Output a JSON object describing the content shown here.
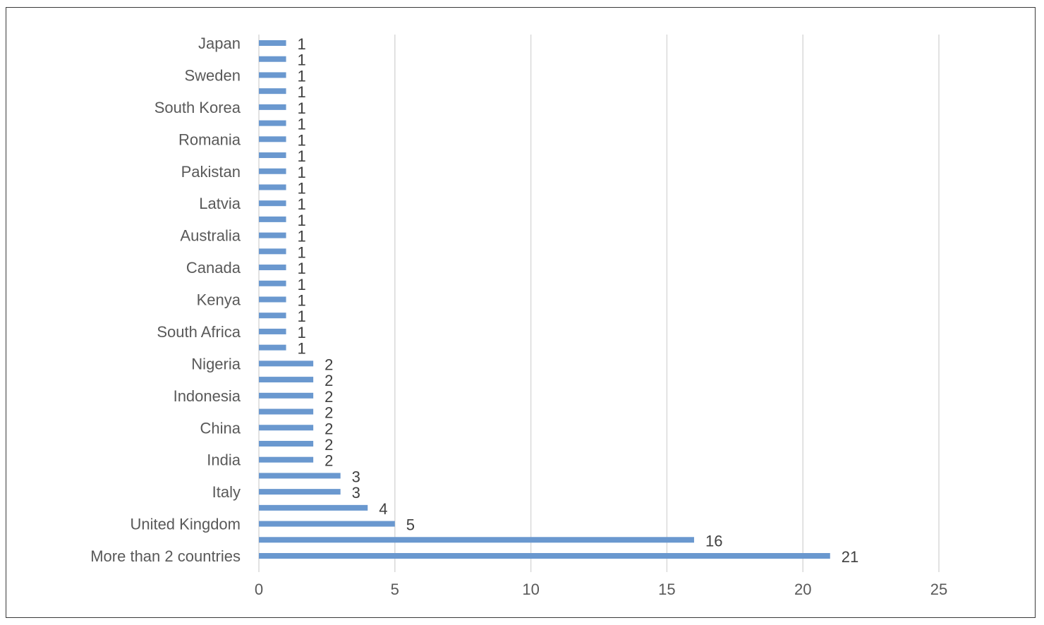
{
  "chart_data": {
    "type": "bar",
    "orientation": "horizontal",
    "title": "",
    "xlabel": "",
    "ylabel": "",
    "xlim": [
      0,
      25
    ],
    "xticks": [
      0,
      5,
      10,
      15,
      20,
      25
    ],
    "grid": true,
    "legend": "none",
    "bar_color": "#6a98cf",
    "categories_top_to_bottom": [
      "Japan",
      "",
      "Sweden",
      "",
      "South Korea",
      "",
      "Romania",
      "",
      "Pakistan",
      "",
      "Latvia",
      "",
      "Australia",
      "",
      "Canada",
      "",
      "Kenya",
      "",
      "South Africa",
      "",
      "Nigeria",
      "",
      "Indonesia",
      "",
      "China",
      "",
      "India",
      "",
      "Italy",
      "",
      "United Kingdom",
      "",
      "More than 2 countries"
    ],
    "values_top_to_bottom": [
      1,
      1,
      1,
      1,
      1,
      1,
      1,
      1,
      1,
      1,
      1,
      1,
      1,
      1,
      1,
      1,
      1,
      1,
      1,
      1,
      2,
      2,
      2,
      2,
      2,
      2,
      2,
      3,
      3,
      4,
      5,
      16,
      21
    ]
  }
}
